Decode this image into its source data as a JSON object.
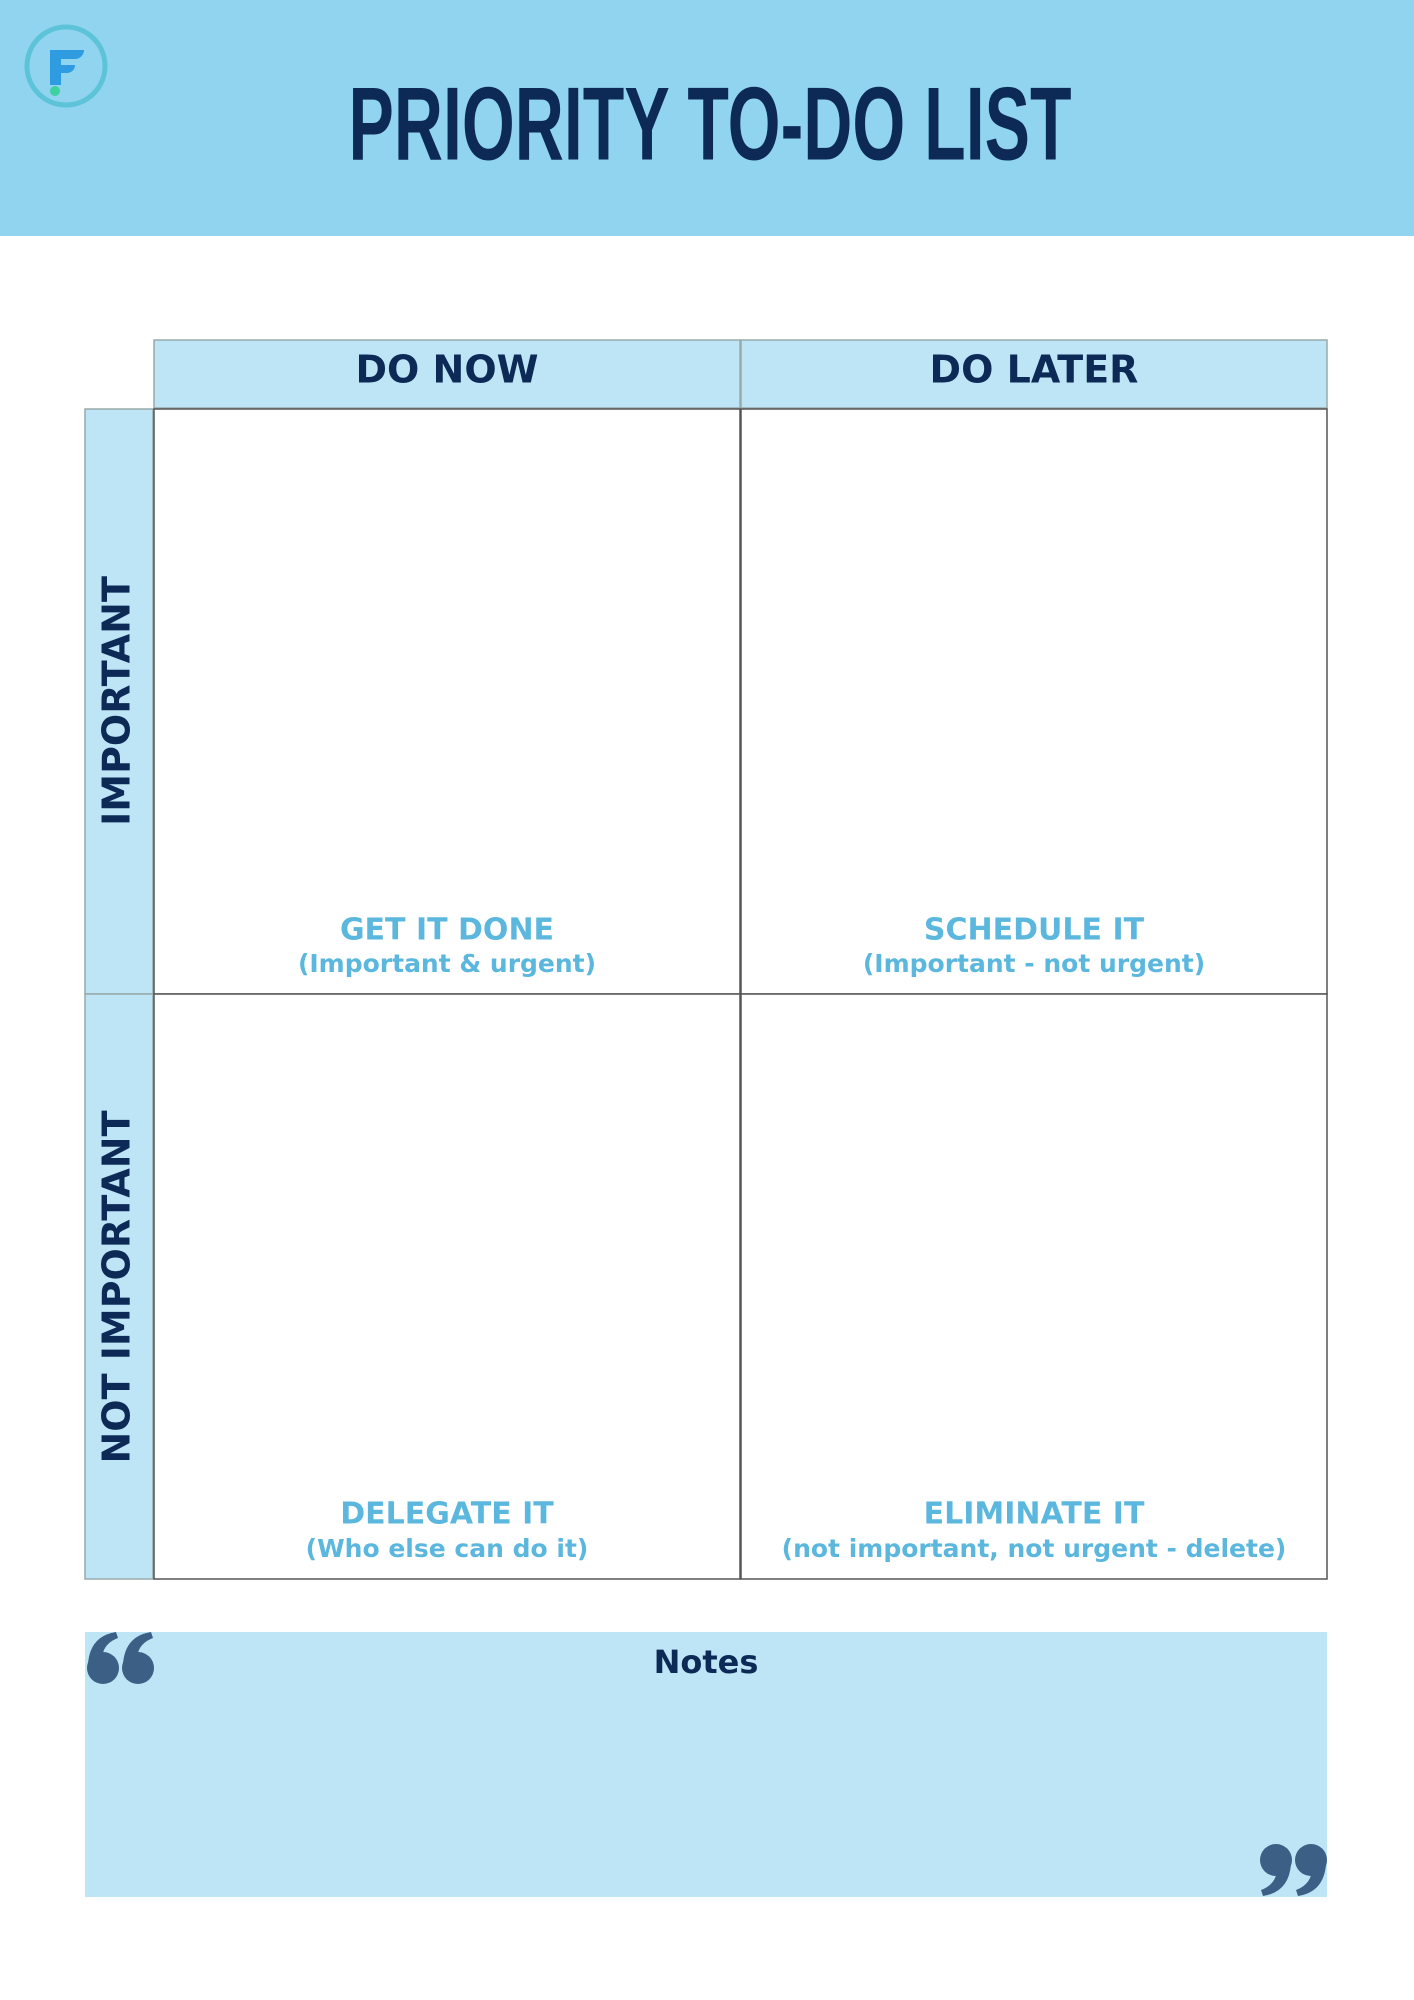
{
  "header": {
    "title": "PRIORITY TO-DO LIST"
  },
  "columns": [
    "DO NOW",
    "DO LATER"
  ],
  "rows": [
    "IMPORTANT",
    "NOT IMPORTANT"
  ],
  "quadrants": [
    {
      "title": "GET IT DONE",
      "subtitle": "(Important & urgent)"
    },
    {
      "title": "SCHEDULE IT",
      "subtitle": "(Important - not urgent)"
    },
    {
      "title": "DELEGATE IT",
      "subtitle": "(Who else can do it)"
    },
    {
      "title": "ELIMINATE IT",
      "subtitle": "(not important, not urgent - delete)"
    }
  ],
  "notes": {
    "label": "Notes"
  }
}
